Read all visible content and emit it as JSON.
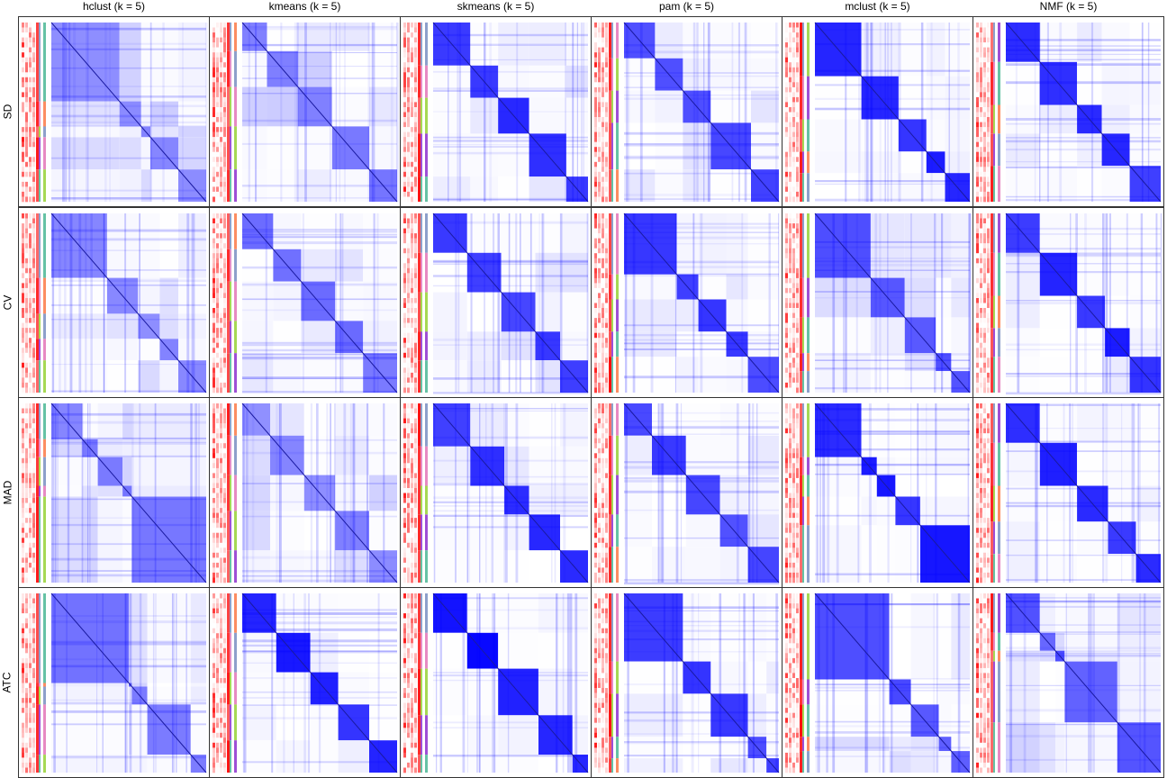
{
  "chart_data": {
    "type": "heatmap",
    "description_free": true,
    "columns": [
      "hclust (k = 5)",
      "kmeans (k = 5)",
      "skmeans (k = 5)",
      "pam (k = 5)",
      "mclust (k = 5)",
      "NMF (k = 5)"
    ],
    "rows": [
      "SD",
      "CV",
      "MAD",
      "ATC"
    ],
    "value_range": [
      0,
      1
    ],
    "colors": {
      "matrix_low": "#ffffff",
      "matrix_high": "#0000ff",
      "annotation_low": "#ffffff",
      "annotation_high": "#ff0000",
      "class_palette": [
        "#66c2a5",
        "#fc8d62",
        "#8da0cb",
        "#e78ac3",
        "#a6d854",
        "#9e4fd6"
      ]
    },
    "panels": [
      {
        "row": "SD",
        "col": "hclust (k = 5)",
        "blocks": [
          0.44,
          0.14,
          0.06,
          0.18,
          0.18
        ],
        "intra": 0.5,
        "inter": 0.22
      },
      {
        "row": "SD",
        "col": "kmeans (k = 5)",
        "blocks": [
          0.16,
          0.2,
          0.22,
          0.24,
          0.18
        ],
        "intra": 0.55,
        "inter": 0.2
      },
      {
        "row": "SD",
        "col": "skmeans (k = 5)",
        "blocks": [
          0.24,
          0.18,
          0.2,
          0.24,
          0.14
        ],
        "intra": 0.85,
        "inter": 0.12
      },
      {
        "row": "SD",
        "col": "pam (k = 5)",
        "blocks": [
          0.2,
          0.18,
          0.18,
          0.26,
          0.18
        ],
        "intra": 0.75,
        "inter": 0.12
      },
      {
        "row": "SD",
        "col": "mclust (k = 5)",
        "blocks": [
          0.3,
          0.24,
          0.18,
          0.12,
          0.16
        ],
        "intra": 0.92,
        "inter": 0.06
      },
      {
        "row": "SD",
        "col": "NMF (k = 5)",
        "blocks": [
          0.22,
          0.24,
          0.16,
          0.18,
          0.2
        ],
        "intra": 0.88,
        "inter": 0.08
      },
      {
        "row": "CV",
        "col": "hclust (k = 5)",
        "blocks": [
          0.36,
          0.2,
          0.14,
          0.12,
          0.18
        ],
        "intra": 0.5,
        "inter": 0.2
      },
      {
        "row": "CV",
        "col": "kmeans (k = 5)",
        "blocks": [
          0.2,
          0.18,
          0.22,
          0.18,
          0.22
        ],
        "intra": 0.6,
        "inter": 0.15
      },
      {
        "row": "CV",
        "col": "skmeans (k = 5)",
        "blocks": [
          0.22,
          0.22,
          0.22,
          0.16,
          0.18
        ],
        "intra": 0.8,
        "inter": 0.12
      },
      {
        "row": "CV",
        "col": "pam (k = 5)",
        "blocks": [
          0.34,
          0.14,
          0.18,
          0.14,
          0.2
        ],
        "intra": 0.8,
        "inter": 0.1
      },
      {
        "row": "CV",
        "col": "mclust (k = 5)",
        "blocks": [
          0.36,
          0.22,
          0.2,
          0.1,
          0.12
        ],
        "intra": 0.7,
        "inter": 0.15
      },
      {
        "row": "CV",
        "col": "NMF (k = 5)",
        "blocks": [
          0.22,
          0.24,
          0.18,
          0.16,
          0.2
        ],
        "intra": 0.9,
        "inter": 0.08
      },
      {
        "row": "MAD",
        "col": "hclust (k = 5)",
        "blocks": [
          0.2,
          0.1,
          0.16,
          0.06,
          0.48
        ],
        "intra": 0.55,
        "inter": 0.2
      },
      {
        "row": "MAD",
        "col": "kmeans (k = 5)",
        "blocks": [
          0.18,
          0.22,
          0.2,
          0.22,
          0.18
        ],
        "intra": 0.5,
        "inter": 0.2
      },
      {
        "row": "MAD",
        "col": "skmeans (k = 5)",
        "blocks": [
          0.24,
          0.22,
          0.16,
          0.2,
          0.18
        ],
        "intra": 0.85,
        "inter": 0.1
      },
      {
        "row": "MAD",
        "col": "pam (k = 5)",
        "blocks": [
          0.18,
          0.22,
          0.22,
          0.18,
          0.2
        ],
        "intra": 0.8,
        "inter": 0.12
      },
      {
        "row": "MAD",
        "col": "mclust (k = 5)",
        "blocks": [
          0.3,
          0.1,
          0.12,
          0.16,
          0.32
        ],
        "intra": 0.92,
        "inter": 0.06
      },
      {
        "row": "MAD",
        "col": "NMF (k = 5)",
        "blocks": [
          0.22,
          0.24,
          0.2,
          0.18,
          0.16
        ],
        "intra": 0.9,
        "inter": 0.08
      },
      {
        "row": "ATC",
        "col": "hclust (k = 5)",
        "blocks": [
          0.5,
          0.02,
          0.1,
          0.28,
          0.1
        ],
        "intra": 0.6,
        "inter": 0.18
      },
      {
        "row": "ATC",
        "col": "kmeans (k = 5)",
        "blocks": [
          0.22,
          0.22,
          0.18,
          0.2,
          0.18
        ],
        "intra": 0.92,
        "inter": 0.08
      },
      {
        "row": "ATC",
        "col": "skmeans (k = 5)",
        "blocks": [
          0.22,
          0.2,
          0.26,
          0.22,
          0.1
        ],
        "intra": 0.98,
        "inter": 0.05
      },
      {
        "row": "ATC",
        "col": "pam (k = 5)",
        "blocks": [
          0.38,
          0.18,
          0.24,
          0.12,
          0.08
        ],
        "intra": 0.8,
        "inter": 0.1
      },
      {
        "row": "ATC",
        "col": "mclust (k = 5)",
        "blocks": [
          0.48,
          0.14,
          0.18,
          0.08,
          0.12
        ],
        "intra": 0.72,
        "inter": 0.15
      },
      {
        "row": "ATC",
        "col": "NMF (k = 5)",
        "blocks": [
          0.22,
          0.1,
          0.06,
          0.34,
          0.28
        ],
        "intra": 0.7,
        "inter": 0.18
      }
    ]
  }
}
